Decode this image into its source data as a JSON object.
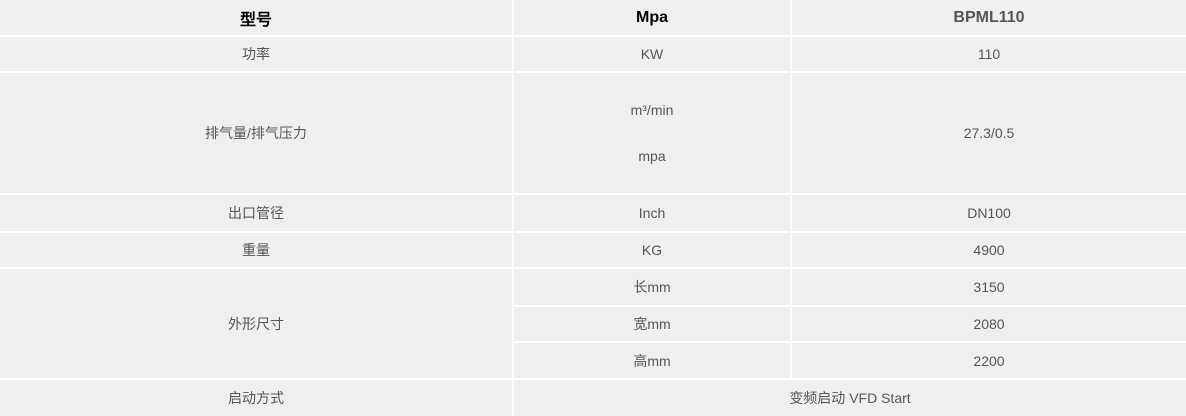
{
  "header": {
    "col1": "型号",
    "col2": "Mpa",
    "col3": "BPML110"
  },
  "rows": {
    "power": {
      "label": "功率",
      "unit": "KW",
      "value": "110"
    },
    "air": {
      "label": "排气量/排气压力",
      "unit1": "m³/min",
      "unit2": "mpa",
      "value": "27.3/0.5"
    },
    "outlet": {
      "label": "出口管径",
      "unit": "Inch",
      "value": "DN100"
    },
    "weight": {
      "label": "重量",
      "unit": "KG",
      "value": "4900"
    },
    "dims": {
      "label": "外形尺寸",
      "length": {
        "unit": "长mm",
        "value": "3150"
      },
      "width": {
        "unit": "宽mm",
        "value": "2080"
      },
      "height": {
        "unit": "高mm",
        "value": "2200"
      }
    },
    "start": {
      "label": "启动方式",
      "value": "变频启动 VFD Start"
    }
  }
}
